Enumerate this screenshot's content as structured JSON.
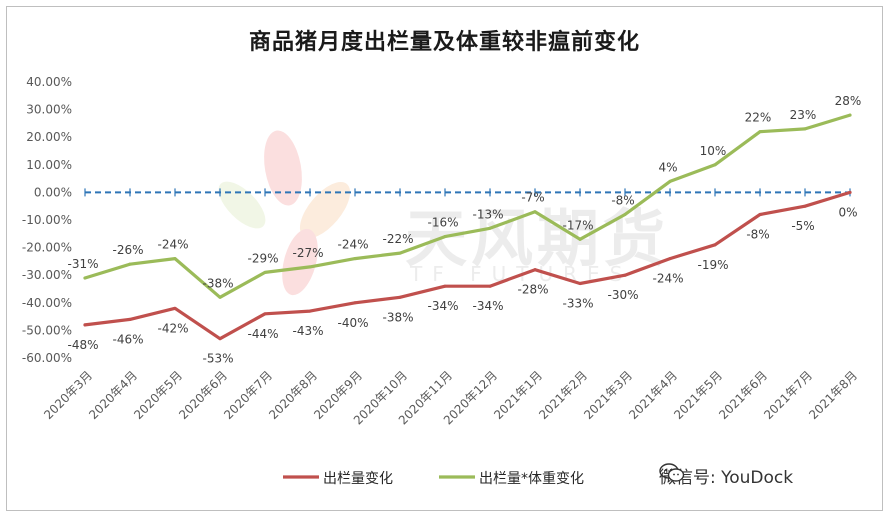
{
  "chart_data": {
    "type": "line",
    "title": "商品猪月度出栏量及体重较非瘟前变化",
    "categories": [
      "2020年3月",
      "2020年4月",
      "2020年5月",
      "2020年6月",
      "2020年7月",
      "2020年8月",
      "2020年9月",
      "2020年10月",
      "2020年11月",
      "2020年12月",
      "2021年1月",
      "2021年2月",
      "2021年3月",
      "2021年4月",
      "2021年5月",
      "2021年6月",
      "2021年7月",
      "2021年8月"
    ],
    "ylim": [
      -0.6,
      0.4
    ],
    "yticks": [
      "40.00%",
      "30.00%",
      "20.00%",
      "10.00%",
      "0.00%",
      "-10.00%",
      "-20.00%",
      "-30.00%",
      "-40.00%",
      "-50.00%",
      "-60.00%"
    ],
    "series": [
      {
        "name": "出栏量变化",
        "color": "#c0504d",
        "values": [
          -0.48,
          -0.46,
          -0.42,
          -0.53,
          -0.44,
          -0.43,
          -0.4,
          -0.38,
          -0.34,
          -0.34,
          -0.28,
          -0.33,
          -0.3,
          -0.24,
          -0.19,
          -0.08,
          -0.05,
          0.0
        ],
        "labels": [
          "-48%",
          "-46%",
          "-42%",
          "-53%",
          "-44%",
          "-43%",
          "-40%",
          "-38%",
          "-34%",
          "-34%",
          "-28%",
          "-33%",
          "-30%",
          "-24%",
          "-19%",
          "-8%",
          "-5%",
          "0%"
        ]
      },
      {
        "name": "出栏量*体重变化",
        "color": "#9bbb59",
        "values": [
          -0.31,
          -0.26,
          -0.24,
          -0.38,
          -0.29,
          -0.27,
          -0.24,
          -0.22,
          -0.16,
          -0.13,
          -0.07,
          -0.17,
          -0.08,
          0.04,
          0.1,
          0.22,
          0.23,
          0.28
        ],
        "labels": [
          "-31%",
          "-26%",
          "-24%",
          "-38%",
          "-29%",
          "-27%",
          "-24%",
          "-22%",
          "-16%",
          "-13%",
          "-7%",
          "-17%",
          "-8%",
          "4%",
          "10%",
          "22%",
          "23%",
          "28%"
        ]
      }
    ],
    "reference_line": {
      "value": 0,
      "color": "#2e75b6",
      "style": "dashed"
    },
    "legend": "bottom",
    "grid": false
  },
  "watermark": {
    "text": "天风期货",
    "sub": "TF FUTURES"
  },
  "footer": {
    "wechat": "微信号: YouDock"
  }
}
